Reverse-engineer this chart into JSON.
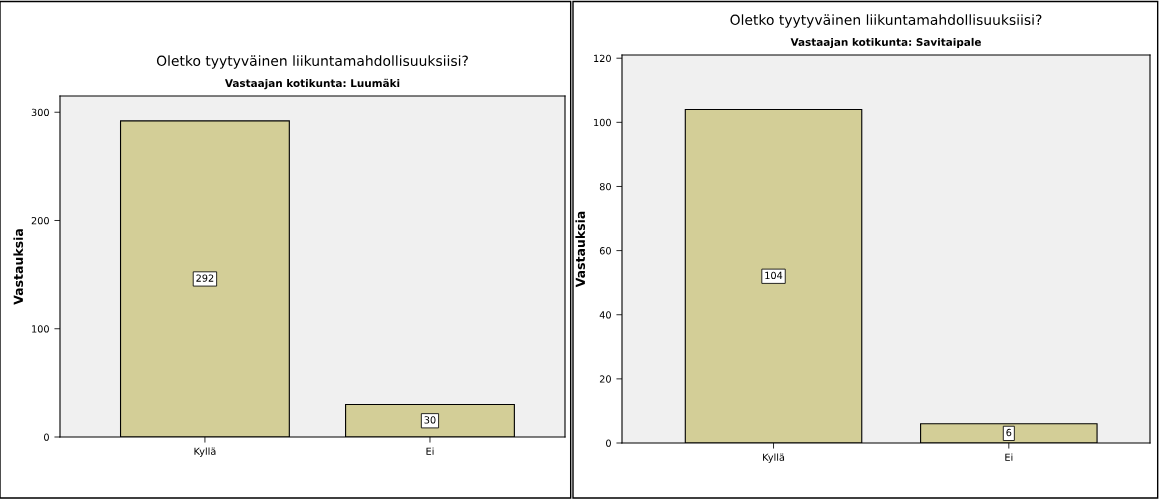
{
  "chart_data": [
    {
      "type": "bar",
      "title": "Oletko tyytyväinen liikuntamahdollisuuksiisi?",
      "subtitle": "Vastaajan kotikunta: Luumäki",
      "ylabel": "Vastauksia",
      "categories": [
        "Kyllä",
        "Ei"
      ],
      "values": [
        292,
        30
      ],
      "color": "#d3ce97",
      "ylim": [
        0,
        315
      ],
      "yticks": [
        0,
        100,
        200,
        300
      ],
      "data_labels": true,
      "grid": false,
      "legend": false
    },
    {
      "type": "bar",
      "title": "Oletko tyytyväinen liikuntamahdollisuuksiisi?",
      "subtitle": "Vastaajan kotikunta: Savitaipale",
      "ylabel": "Vastauksia",
      "categories": [
        "Kyllä",
        "Ei"
      ],
      "values": [
        104,
        6
      ],
      "color": "#d3ce97",
      "ylim": [
        0,
        121
      ],
      "yticks": [
        0,
        20,
        40,
        60,
        80,
        100,
        120
      ],
      "data_labels": true,
      "grid": false,
      "legend": false
    }
  ]
}
